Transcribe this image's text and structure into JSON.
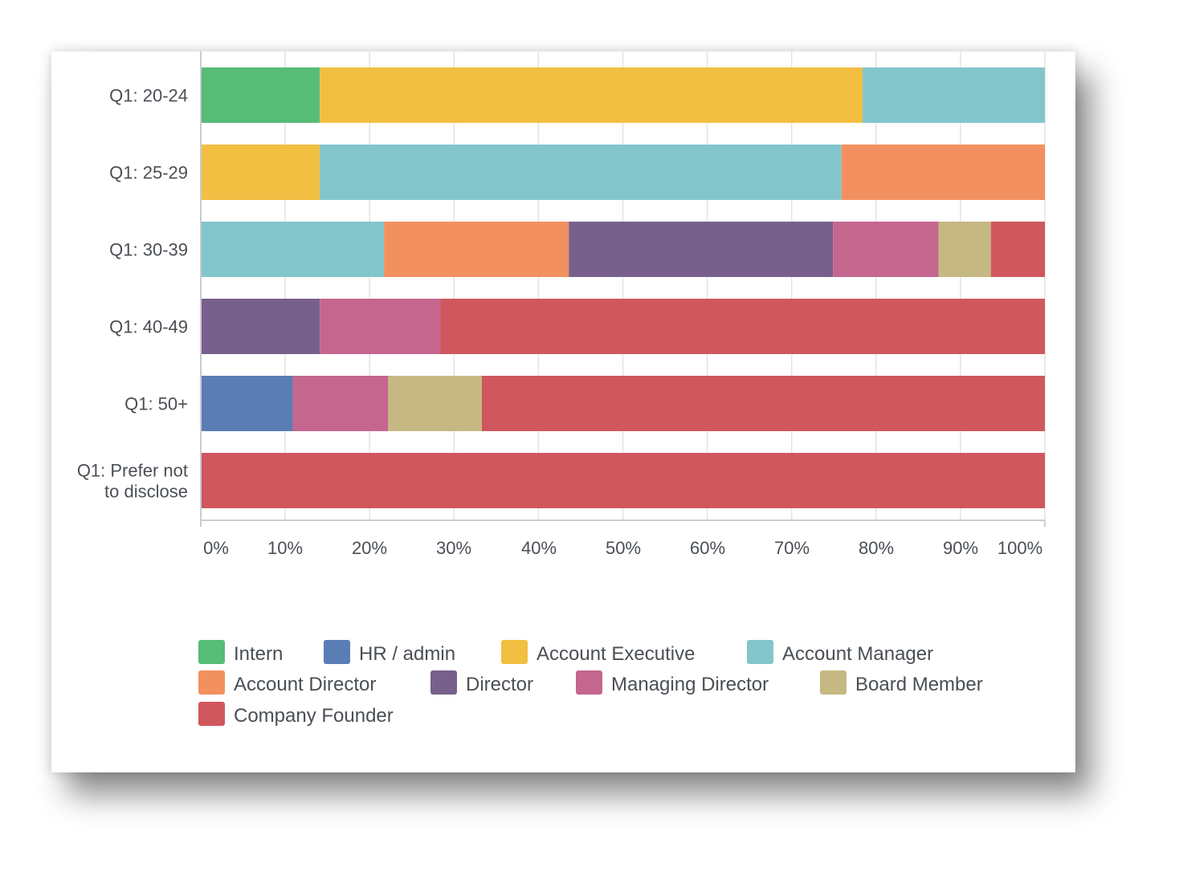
{
  "chart_data": {
    "type": "bar",
    "orientation": "horizontal",
    "stacked": true,
    "percent": true,
    "title": "",
    "xlabel": "",
    "ylabel": "",
    "xlim": [
      0,
      100
    ],
    "grid": true,
    "legend_position": "bottom",
    "categories": [
      "Q1: 20-24",
      "Q1: 25-29",
      "Q1: 30-39",
      "Q1: 40-49",
      "Q1: 50+",
      "Q1: Prefer not to disclose"
    ],
    "category_lines": [
      [
        "Q1: 20-24"
      ],
      [
        "Q1: 25-29"
      ],
      [
        "Q1: 30-39"
      ],
      [
        "Q1: 40-49"
      ],
      [
        "Q1: 50+"
      ],
      [
        "Q1: Prefer not",
        "to disclose"
      ]
    ],
    "ticks": [
      "0%",
      "10%",
      "20%",
      "30%",
      "40%",
      "50%",
      "60%",
      "70%",
      "80%",
      "90%",
      "100%"
    ],
    "series": [
      {
        "name": "Intern",
        "color": "#56bc76",
        "values": [
          14.1,
          0,
          0,
          0,
          0,
          0
        ]
      },
      {
        "name": "HR / admin",
        "color": "#5a7db4",
        "values": [
          0,
          0,
          0,
          0,
          10.9,
          0
        ]
      },
      {
        "name": "Account Executive",
        "color": "#f2bf42",
        "values": [
          64.3,
          14.1,
          0,
          0,
          0,
          0
        ]
      },
      {
        "name": "Account Manager",
        "color": "#82c6cc",
        "values": [
          21.6,
          61.8,
          21.7,
          0,
          0,
          0
        ]
      },
      {
        "name": "Account Director",
        "color": "#f2915f",
        "values": [
          0,
          24.1,
          21.9,
          0,
          0,
          0
        ]
      },
      {
        "name": "Director",
        "color": "#78608d",
        "values": [
          0,
          0,
          31.3,
          14.1,
          0,
          0
        ]
      },
      {
        "name": "Managing Director",
        "color": "#c5668f",
        "values": [
          0,
          0,
          12.5,
          14.3,
          11.3,
          0
        ]
      },
      {
        "name": "Board Member",
        "color": "#c6b883",
        "values": [
          0,
          0,
          6.2,
          0,
          11.1,
          0
        ]
      },
      {
        "name": "Company Founder",
        "color": "#d0575e",
        "values": [
          0,
          0,
          6.4,
          71.6,
          66.7,
          100
        ]
      }
    ]
  }
}
